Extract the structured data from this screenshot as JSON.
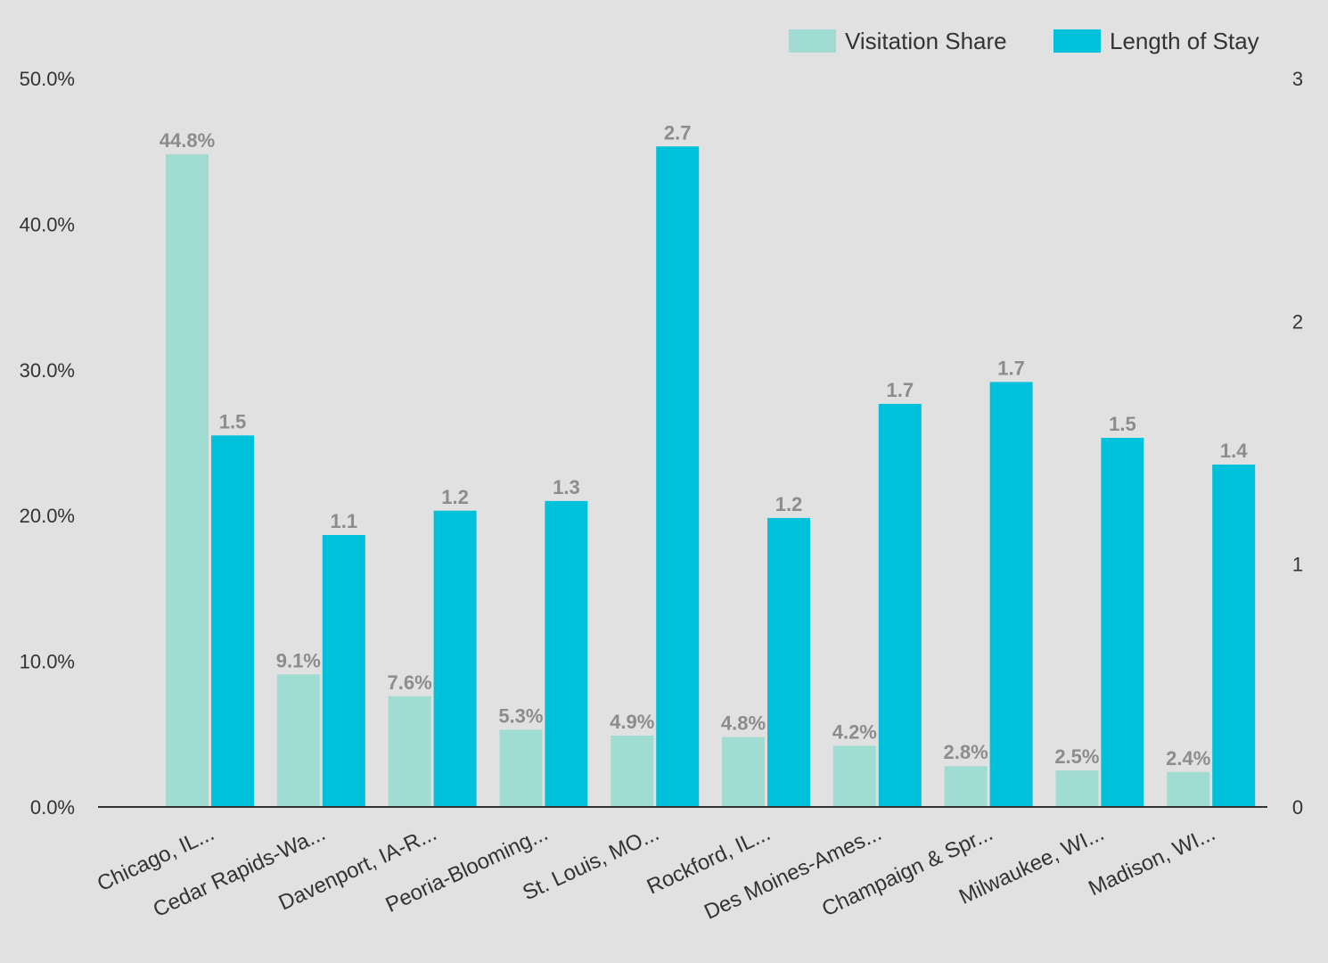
{
  "chart_data": {
    "type": "bar",
    "categories": [
      "Chicago, IL...",
      "Cedar Rapids-Wa...",
      "Davenport, IA-R...",
      "Peoria-Blooming...",
      "St. Louis, MO...",
      "Rockford, IL...",
      "Des Moines-Ames...",
      "Champaign & Spr...",
      "Milwaukee, WI...",
      "Madison, WI..."
    ],
    "series": [
      {
        "name": "Visitation Share",
        "axis": "left",
        "color": "#a1dcd3",
        "values": [
          44.8,
          9.1,
          7.6,
          5.3,
          4.9,
          4.8,
          4.2,
          2.8,
          2.5,
          2.4
        ],
        "labels": [
          "44.8%",
          "9.1%",
          "7.6%",
          "5.3%",
          "4.9%",
          "4.8%",
          "4.2%",
          "2.8%",
          "2.5%",
          "2.4%"
        ]
      },
      {
        "name": "Length of Stay",
        "axis": "right",
        "color": "#00c1da",
        "values": [
          1.53,
          1.12,
          1.22,
          1.26,
          2.72,
          1.19,
          1.66,
          1.75,
          1.52,
          1.41
        ],
        "labels": [
          "1.5",
          "1.1",
          "1.2",
          "1.3",
          "2.7",
          "1.2",
          "1.7",
          "1.7",
          "1.5",
          "1.4"
        ]
      }
    ],
    "y_left": {
      "min": 0,
      "max": 50,
      "ticks": [
        "0.0%",
        "10.0%",
        "20.0%",
        "30.0%",
        "40.0%",
        "50.0%"
      ]
    },
    "y_right": {
      "min": 0,
      "max": 3,
      "ticks": [
        "0",
        "1",
        "2",
        "3"
      ]
    },
    "legend_position": "top-right",
    "grid": false
  }
}
